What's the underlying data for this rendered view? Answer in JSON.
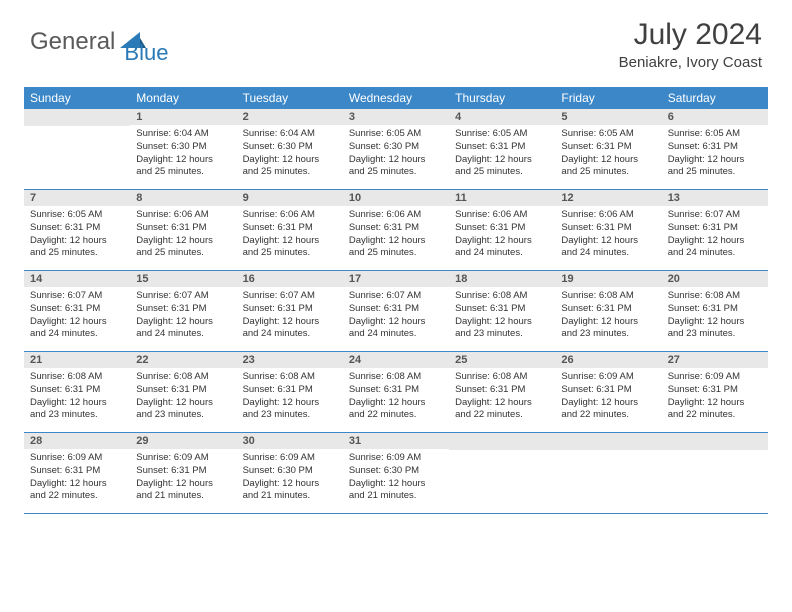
{
  "logo": {
    "part1": "General",
    "part2": "Blue"
  },
  "header": {
    "month": "July 2024",
    "location": "Beniakre, Ivory Coast"
  },
  "colors": {
    "header_bg": "#3b87c8",
    "header_text": "#ffffff",
    "daynum_bg": "#e8e8e8",
    "daynum_text": "#555555",
    "body_text": "#333333",
    "logo_gray": "#5a5a5a",
    "logo_blue": "#2a7ab8",
    "row_divider": "#3b87c8"
  },
  "dayNames": [
    "Sunday",
    "Monday",
    "Tuesday",
    "Wednesday",
    "Thursday",
    "Friday",
    "Saturday"
  ],
  "weeks": [
    [
      {
        "day": "",
        "sunrise": "",
        "sunset": "",
        "daylight1": "",
        "daylight2": ""
      },
      {
        "day": "1",
        "sunrise": "Sunrise: 6:04 AM",
        "sunset": "Sunset: 6:30 PM",
        "daylight1": "Daylight: 12 hours",
        "daylight2": "and 25 minutes."
      },
      {
        "day": "2",
        "sunrise": "Sunrise: 6:04 AM",
        "sunset": "Sunset: 6:30 PM",
        "daylight1": "Daylight: 12 hours",
        "daylight2": "and 25 minutes."
      },
      {
        "day": "3",
        "sunrise": "Sunrise: 6:05 AM",
        "sunset": "Sunset: 6:30 PM",
        "daylight1": "Daylight: 12 hours",
        "daylight2": "and 25 minutes."
      },
      {
        "day": "4",
        "sunrise": "Sunrise: 6:05 AM",
        "sunset": "Sunset: 6:31 PM",
        "daylight1": "Daylight: 12 hours",
        "daylight2": "and 25 minutes."
      },
      {
        "day": "5",
        "sunrise": "Sunrise: 6:05 AM",
        "sunset": "Sunset: 6:31 PM",
        "daylight1": "Daylight: 12 hours",
        "daylight2": "and 25 minutes."
      },
      {
        "day": "6",
        "sunrise": "Sunrise: 6:05 AM",
        "sunset": "Sunset: 6:31 PM",
        "daylight1": "Daylight: 12 hours",
        "daylight2": "and 25 minutes."
      }
    ],
    [
      {
        "day": "7",
        "sunrise": "Sunrise: 6:05 AM",
        "sunset": "Sunset: 6:31 PM",
        "daylight1": "Daylight: 12 hours",
        "daylight2": "and 25 minutes."
      },
      {
        "day": "8",
        "sunrise": "Sunrise: 6:06 AM",
        "sunset": "Sunset: 6:31 PM",
        "daylight1": "Daylight: 12 hours",
        "daylight2": "and 25 minutes."
      },
      {
        "day": "9",
        "sunrise": "Sunrise: 6:06 AM",
        "sunset": "Sunset: 6:31 PM",
        "daylight1": "Daylight: 12 hours",
        "daylight2": "and 25 minutes."
      },
      {
        "day": "10",
        "sunrise": "Sunrise: 6:06 AM",
        "sunset": "Sunset: 6:31 PM",
        "daylight1": "Daylight: 12 hours",
        "daylight2": "and 25 minutes."
      },
      {
        "day": "11",
        "sunrise": "Sunrise: 6:06 AM",
        "sunset": "Sunset: 6:31 PM",
        "daylight1": "Daylight: 12 hours",
        "daylight2": "and 24 minutes."
      },
      {
        "day": "12",
        "sunrise": "Sunrise: 6:06 AM",
        "sunset": "Sunset: 6:31 PM",
        "daylight1": "Daylight: 12 hours",
        "daylight2": "and 24 minutes."
      },
      {
        "day": "13",
        "sunrise": "Sunrise: 6:07 AM",
        "sunset": "Sunset: 6:31 PM",
        "daylight1": "Daylight: 12 hours",
        "daylight2": "and 24 minutes."
      }
    ],
    [
      {
        "day": "14",
        "sunrise": "Sunrise: 6:07 AM",
        "sunset": "Sunset: 6:31 PM",
        "daylight1": "Daylight: 12 hours",
        "daylight2": "and 24 minutes."
      },
      {
        "day": "15",
        "sunrise": "Sunrise: 6:07 AM",
        "sunset": "Sunset: 6:31 PM",
        "daylight1": "Daylight: 12 hours",
        "daylight2": "and 24 minutes."
      },
      {
        "day": "16",
        "sunrise": "Sunrise: 6:07 AM",
        "sunset": "Sunset: 6:31 PM",
        "daylight1": "Daylight: 12 hours",
        "daylight2": "and 24 minutes."
      },
      {
        "day": "17",
        "sunrise": "Sunrise: 6:07 AM",
        "sunset": "Sunset: 6:31 PM",
        "daylight1": "Daylight: 12 hours",
        "daylight2": "and 24 minutes."
      },
      {
        "day": "18",
        "sunrise": "Sunrise: 6:08 AM",
        "sunset": "Sunset: 6:31 PM",
        "daylight1": "Daylight: 12 hours",
        "daylight2": "and 23 minutes."
      },
      {
        "day": "19",
        "sunrise": "Sunrise: 6:08 AM",
        "sunset": "Sunset: 6:31 PM",
        "daylight1": "Daylight: 12 hours",
        "daylight2": "and 23 minutes."
      },
      {
        "day": "20",
        "sunrise": "Sunrise: 6:08 AM",
        "sunset": "Sunset: 6:31 PM",
        "daylight1": "Daylight: 12 hours",
        "daylight2": "and 23 minutes."
      }
    ],
    [
      {
        "day": "21",
        "sunrise": "Sunrise: 6:08 AM",
        "sunset": "Sunset: 6:31 PM",
        "daylight1": "Daylight: 12 hours",
        "daylight2": "and 23 minutes."
      },
      {
        "day": "22",
        "sunrise": "Sunrise: 6:08 AM",
        "sunset": "Sunset: 6:31 PM",
        "daylight1": "Daylight: 12 hours",
        "daylight2": "and 23 minutes."
      },
      {
        "day": "23",
        "sunrise": "Sunrise: 6:08 AM",
        "sunset": "Sunset: 6:31 PM",
        "daylight1": "Daylight: 12 hours",
        "daylight2": "and 23 minutes."
      },
      {
        "day": "24",
        "sunrise": "Sunrise: 6:08 AM",
        "sunset": "Sunset: 6:31 PM",
        "daylight1": "Daylight: 12 hours",
        "daylight2": "and 22 minutes."
      },
      {
        "day": "25",
        "sunrise": "Sunrise: 6:08 AM",
        "sunset": "Sunset: 6:31 PM",
        "daylight1": "Daylight: 12 hours",
        "daylight2": "and 22 minutes."
      },
      {
        "day": "26",
        "sunrise": "Sunrise: 6:09 AM",
        "sunset": "Sunset: 6:31 PM",
        "daylight1": "Daylight: 12 hours",
        "daylight2": "and 22 minutes."
      },
      {
        "day": "27",
        "sunrise": "Sunrise: 6:09 AM",
        "sunset": "Sunset: 6:31 PM",
        "daylight1": "Daylight: 12 hours",
        "daylight2": "and 22 minutes."
      }
    ],
    [
      {
        "day": "28",
        "sunrise": "Sunrise: 6:09 AM",
        "sunset": "Sunset: 6:31 PM",
        "daylight1": "Daylight: 12 hours",
        "daylight2": "and 22 minutes."
      },
      {
        "day": "29",
        "sunrise": "Sunrise: 6:09 AM",
        "sunset": "Sunset: 6:31 PM",
        "daylight1": "Daylight: 12 hours",
        "daylight2": "and 21 minutes."
      },
      {
        "day": "30",
        "sunrise": "Sunrise: 6:09 AM",
        "sunset": "Sunset: 6:30 PM",
        "daylight1": "Daylight: 12 hours",
        "daylight2": "and 21 minutes."
      },
      {
        "day": "31",
        "sunrise": "Sunrise: 6:09 AM",
        "sunset": "Sunset: 6:30 PM",
        "daylight1": "Daylight: 12 hours",
        "daylight2": "and 21 minutes."
      },
      {
        "day": "",
        "sunrise": "",
        "sunset": "",
        "daylight1": "",
        "daylight2": ""
      },
      {
        "day": "",
        "sunrise": "",
        "sunset": "",
        "daylight1": "",
        "daylight2": ""
      },
      {
        "day": "",
        "sunrise": "",
        "sunset": "",
        "daylight1": "",
        "daylight2": ""
      }
    ]
  ]
}
